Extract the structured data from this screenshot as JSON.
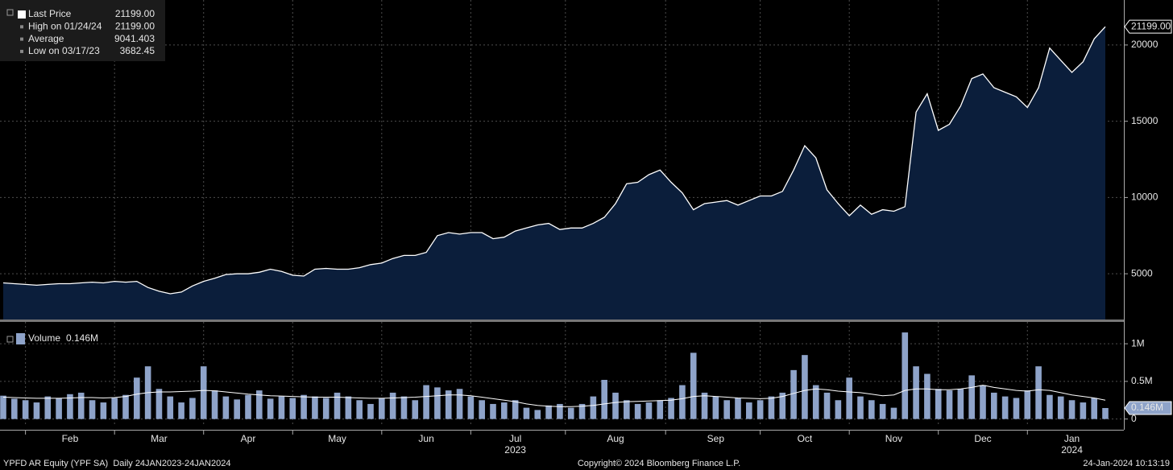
{
  "chart_data": [
    {
      "type": "area",
      "categories": [
        null,
        null,
        null,
        null,
        null,
        null,
        "Feb",
        null,
        null,
        null,
        null,
        null,
        null,
        null,
        "Mar",
        null,
        null,
        null,
        null,
        null,
        null,
        null,
        "Apr",
        null,
        null,
        null,
        null,
        null,
        null,
        null,
        "May",
        null,
        null,
        null,
        null,
        null,
        null,
        null,
        "Jun",
        null,
        null,
        null,
        null,
        null,
        null,
        null,
        "Jul",
        null,
        null,
        null,
        null,
        null,
        null,
        null,
        null,
        "Aug",
        null,
        null,
        null,
        null,
        null,
        null,
        null,
        null,
        "Sep",
        null,
        null,
        null,
        null,
        null,
        null,
        null,
        "Oct",
        null,
        null,
        null,
        null,
        null,
        null,
        null,
        "Nov",
        null,
        null,
        null,
        null,
        null,
        null,
        null,
        "Dec",
        null,
        null,
        null,
        null,
        null,
        null,
        null,
        "Jan",
        null,
        null,
        null
      ],
      "category_years": [
        null,
        null,
        null,
        null,
        null,
        null,
        null,
        null,
        null,
        null,
        null,
        null,
        null,
        null,
        null,
        null,
        null,
        null,
        null,
        null,
        null,
        null,
        null,
        null,
        null,
        null,
        null,
        null,
        null,
        null,
        null,
        null,
        null,
        null,
        null,
        null,
        null,
        null,
        null,
        null,
        null,
        null,
        null,
        null,
        null,
        null,
        "2023",
        null,
        null,
        null,
        null,
        null,
        null,
        null,
        null,
        null,
        null,
        null,
        null,
        null,
        null,
        null,
        null,
        null,
        null,
        null,
        null,
        null,
        null,
        null,
        null,
        null,
        null,
        null,
        null,
        null,
        null,
        null,
        null,
        null,
        null,
        null,
        null,
        null,
        null,
        null,
        null,
        null,
        null,
        null,
        null,
        null,
        null,
        null,
        null,
        null,
        "2024",
        null,
        null,
        null
      ],
      "series": [
        {
          "name": "Last Price",
          "color": "#ffffff",
          "fill": "#0b1e3b",
          "last_label": "21199.00",
          "values": [
            4400,
            4350,
            4300,
            4250,
            4300,
            4350,
            4350,
            4400,
            4450,
            4400,
            4500,
            4450,
            4500,
            4100,
            3850,
            3690,
            3800,
            4200,
            4500,
            4700,
            4950,
            5000,
            5000,
            5100,
            5300,
            5150,
            4900,
            4850,
            5300,
            5350,
            5300,
            5300,
            5400,
            5600,
            5700,
            6000,
            6200,
            6200,
            6400,
            7500,
            7700,
            7600,
            7700,
            7700,
            7300,
            7400,
            7800,
            8000,
            8200,
            8300,
            7900,
            8000,
            8000,
            8300,
            8700,
            9600,
            10900,
            11000,
            11500,
            11800,
            11000,
            10300,
            9200,
            9600,
            9700,
            9800,
            9500,
            9800,
            10100,
            10100,
            10400,
            11800,
            13400,
            12600,
            10500,
            9600,
            8800,
            9500,
            8900,
            9200,
            9100,
            9400,
            15600,
            16800,
            14400,
            14800,
            16000,
            17800,
            18100,
            17200,
            16900,
            16600,
            15900,
            17200,
            19800,
            19000,
            18200,
            18900,
            20400,
            21199
          ]
        }
      ],
      "stats": [
        {
          "name": "High on 01/24/24",
          "value": 21199,
          "label": "21199.00"
        },
        {
          "name": "Average",
          "value": 9041.403
        },
        {
          "name": "Low on 03/17/23",
          "value": 3682.45,
          "label": "3682.45"
        }
      ],
      "ylim": [
        2000,
        22950
      ],
      "yticks": [
        5000,
        10000,
        15000,
        20000
      ],
      "grid": true
    },
    {
      "type": "bar",
      "series": [
        {
          "name": "Volume",
          "color": "#8ea3c9",
          "last_label": "0.146M",
          "values": [
            310000,
            270000,
            250000,
            220000,
            300000,
            280000,
            330000,
            350000,
            250000,
            220000,
            280000,
            320000,
            550000,
            700000,
            400000,
            300000,
            220000,
            280000,
            700000,
            380000,
            300000,
            260000,
            320000,
            380000,
            270000,
            300000,
            280000,
            320000,
            300000,
            280000,
            350000,
            300000,
            250000,
            200000,
            280000,
            350000,
            300000,
            250000,
            450000,
            420000,
            380000,
            400000,
            300000,
            250000,
            200000,
            220000,
            250000,
            150000,
            120000,
            180000,
            200000,
            150000,
            200000,
            300000,
            520000,
            350000,
            250000,
            200000,
            220000,
            250000,
            280000,
            450000,
            880000,
            350000,
            300000,
            250000,
            280000,
            220000,
            250000,
            300000,
            350000,
            650000,
            850000,
            450000,
            350000,
            250000,
            550000,
            300000,
            250000,
            200000,
            150000,
            1150000,
            700000,
            600000,
            400000,
            380000,
            400000,
            580000,
            450000,
            350000,
            300000,
            280000,
            380000,
            700000,
            320000,
            300000,
            250000,
            220000,
            280000,
            146000
          ]
        },
        {
          "type": "line",
          "color": "#ffffff",
          "values": [
            290000,
            285000,
            280000,
            275000,
            275000,
            275000,
            280000,
            285000,
            285000,
            280000,
            285000,
            300000,
            330000,
            350000,
            360000,
            360000,
            365000,
            370000,
            380000,
            375000,
            360000,
            345000,
            330000,
            320000,
            310000,
            305000,
            300000,
            295000,
            290000,
            290000,
            290000,
            285000,
            280000,
            275000,
            275000,
            280000,
            285000,
            290000,
            300000,
            310000,
            320000,
            320000,
            310000,
            290000,
            270000,
            250000,
            230000,
            200000,
            180000,
            170000,
            165000,
            165000,
            170000,
            180000,
            200000,
            220000,
            230000,
            235000,
            240000,
            245000,
            250000,
            270000,
            300000,
            310000,
            300000,
            290000,
            280000,
            275000,
            270000,
            275000,
            300000,
            340000,
            380000,
            400000,
            390000,
            370000,
            360000,
            350000,
            330000,
            310000,
            320000,
            380000,
            400000,
            400000,
            390000,
            390000,
            400000,
            420000,
            450000,
            420000,
            400000,
            380000,
            370000,
            390000,
            380000,
            350000,
            320000,
            300000,
            280000,
            250000
          ]
        }
      ],
      "ylim": [
        -100000,
        1290000
      ],
      "yticks": [
        0,
        {
          "value": 500000,
          "label": "0.5M"
        },
        {
          "value": 1000000,
          "label": "1M"
        }
      ],
      "grid": true
    }
  ],
  "footer": {
    "left": "YPFD AR Equity (YPF SA)  Daily 24JAN2023-24JAN2024",
    "center": "Copyright© 2024 Bloomberg Finance L.P.",
    "right": "24-Jan-2024 10:13:19"
  }
}
